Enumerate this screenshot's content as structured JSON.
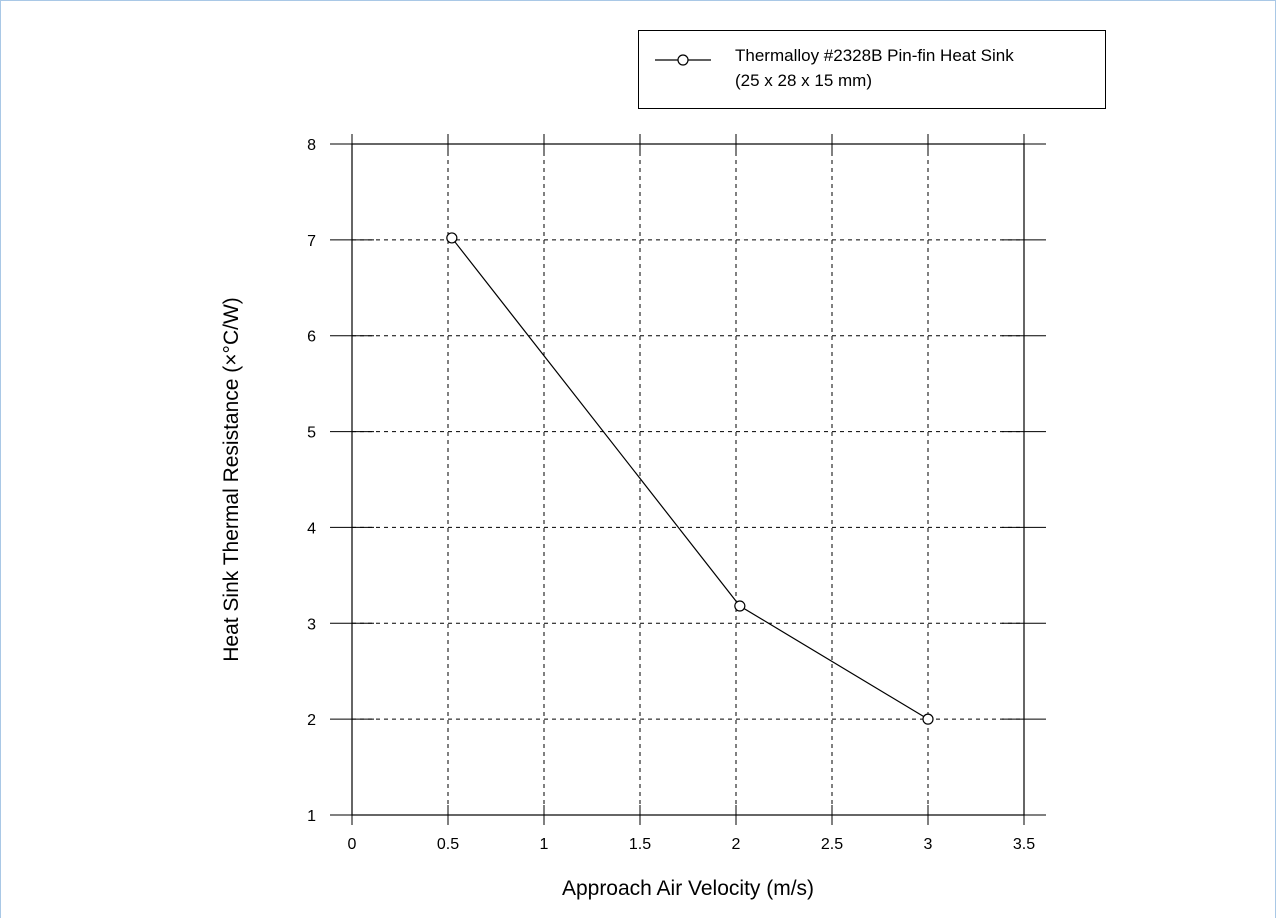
{
  "chart_data": {
    "type": "line",
    "title": "",
    "xlabel": "Approach Air Velocity (m/s)",
    "ylabel": "Heat Sink Thermal Resistance (×°C/W)",
    "xlim": [
      0,
      3.5
    ],
    "ylim": [
      1,
      8
    ],
    "grid": true,
    "legend_position": "top-right",
    "xticks": [
      "0",
      "0.5",
      "1",
      "1.5",
      "2",
      "2.5",
      "3",
      "3.5"
    ],
    "yticks": [
      "1",
      "2",
      "3",
      "4",
      "5",
      "6",
      "7",
      "8"
    ],
    "series": [
      {
        "name": "Thermalloy #2328B Pin-fin Heat Sink (25 x 28 x 15 mm)",
        "marker": "open-circle",
        "color": "#000000",
        "x": [
          0.52,
          2.02,
          3.0
        ],
        "y": [
          7.02,
          3.18,
          2.0
        ]
      }
    ]
  },
  "legend": {
    "line1": "Thermalloy #2328B Pin-fin Heat Sink",
    "line2": "(25 x 28 x 15 mm)"
  }
}
